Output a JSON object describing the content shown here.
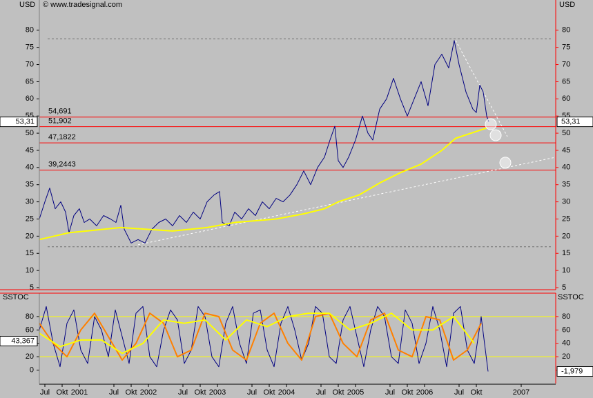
{
  "chart_data": [
    {
      "type": "line",
      "ylabel": "USD",
      "source": "© www.tradesignal.com",
      "xlim": [
        2000.42,
        2007.9
      ],
      "ylim": [
        4.4,
        88.8
      ],
      "yticks": [
        5,
        10,
        15,
        20,
        25,
        30,
        35,
        40,
        45,
        50,
        55,
        60,
        65,
        70,
        75,
        80
      ],
      "xticks": [
        {
          "value": 2000.5,
          "label": "Jul"
        },
        {
          "value": 2000.75,
          "label": "Okt"
        },
        {
          "value": 2001,
          "label": "2001"
        },
        {
          "value": 2001.5,
          "label": "Jul"
        },
        {
          "value": 2001.75,
          "label": "Okt"
        },
        {
          "value": 2002,
          "label": "2002"
        },
        {
          "value": 2002.5,
          "label": "Jul"
        },
        {
          "value": 2002.75,
          "label": "Okt"
        },
        {
          "value": 2003,
          "label": "2003"
        },
        {
          "value": 2003.5,
          "label": "Jul"
        },
        {
          "value": 2003.75,
          "label": "Okt"
        },
        {
          "value": 2004,
          "label": "2004"
        },
        {
          "value": 2004.5,
          "label": "Jul"
        },
        {
          "value": 2004.75,
          "label": "Okt"
        },
        {
          "value": 2005,
          "label": "2005"
        },
        {
          "value": 2005.5,
          "label": "Jul"
        },
        {
          "value": 2005.75,
          "label": "Okt"
        },
        {
          "value": 2006,
          "label": "2006"
        },
        {
          "value": 2006.5,
          "label": "Jul"
        },
        {
          "value": 2006.75,
          "label": "Okt"
        },
        {
          "value": 2007.4,
          "label": "2007"
        }
      ],
      "series": [
        {
          "color": "#000080",
          "x": [
            2000.42,
            2000.5,
            2000.57,
            2000.65,
            2000.73,
            2000.8,
            2000.85,
            2000.92,
            2001,
            2001.07,
            2001.15,
            2001.25,
            2001.35,
            2001.45,
            2001.53,
            2001.6,
            2001.65,
            2001.75,
            2001.85,
            2001.95,
            2002.05,
            2002.15,
            2002.25,
            2002.35,
            2002.45,
            2002.55,
            2002.65,
            2002.75,
            2002.85,
            2002.95,
            2003.03,
            2003.07,
            2003.17,
            2003.25,
            2003.35,
            2003.45,
            2003.55,
            2003.65,
            2003.75,
            2003.85,
            2003.95,
            2004.05,
            2004.15,
            2004.25,
            2004.35,
            2004.45,
            2004.55,
            2004.63,
            2004.7,
            2004.75,
            2004.82,
            2004.9,
            2005,
            2005.1,
            2005.18,
            2005.25,
            2005.35,
            2005.45,
            2005.55,
            2005.65,
            2005.75,
            2005.85,
            2005.95,
            2006.05,
            2006.15,
            2006.25,
            2006.35,
            2006.43,
            2006.5,
            2006.6,
            2006.7,
            2006.75,
            2006.8,
            2006.85,
            2006.9,
            2006.93
          ],
          "values": [
            25,
            30,
            34,
            28,
            30,
            27,
            21,
            26,
            28,
            24,
            25,
            23,
            26,
            25,
            24,
            29,
            22,
            18,
            19,
            18,
            22,
            24,
            25,
            23,
            26,
            24,
            27,
            25,
            30,
            32,
            33,
            24,
            23,
            27,
            25,
            28,
            26,
            30,
            28,
            31,
            30,
            32,
            35,
            39,
            35,
            40,
            43,
            48,
            52,
            42,
            40,
            43,
            48,
            55,
            50,
            48,
            57,
            60,
            66,
            60,
            55,
            60,
            65,
            58,
            70,
            73,
            69,
            77,
            70,
            62,
            57,
            56,
            64,
            62,
            55,
            53.31
          ]
        },
        {
          "color": "#ffff00",
          "x": [
            2000.42,
            2000.85,
            2001.35,
            2001.6,
            2002.35,
            2002.85,
            2003.25,
            2003.85,
            2004.25,
            2004.55,
            2004.75,
            2005.05,
            2005.35,
            2005.65,
            2005.95,
            2006.25,
            2006.45,
            2006.75,
            2006.9
          ],
          "values": [
            19,
            21,
            22,
            22.5,
            21.5,
            22.5,
            24,
            25,
            26.5,
            28,
            30,
            32,
            35.5,
            38.5,
            41,
            45,
            48.5,
            50.5,
            51.5
          ]
        }
      ],
      "levels": [
        {
          "value": 54.691,
          "label": "54,691"
        },
        {
          "value": 51.902,
          "label": "51,902"
        },
        {
          "value": 47.1822,
          "label": "47,1822"
        },
        {
          "value": 39.2443,
          "label": "39,2443"
        }
      ],
      "guides": [
        77.5,
        16.9
      ],
      "trendlines": [
        {
          "x": [
            2001.85,
            2007.9
          ],
          "y": [
            17.5,
            43
          ]
        },
        {
          "x": [
            2006.45,
            2007.2
          ],
          "y": [
            77,
            49
          ]
        }
      ],
      "circles": [
        {
          "x": 2006.96,
          "y": 52.6
        },
        {
          "x": 2007.03,
          "y": 49.4
        },
        {
          "x": 2007.17,
          "y": 41.4
        }
      ],
      "last": {
        "value": 53.31,
        "label": "53,31"
      }
    },
    {
      "type": "line",
      "ylabel": "SSTOC",
      "xlim": [
        2000.42,
        2007.9
      ],
      "ylim": [
        -20,
        115
      ],
      "yticks": [
        0,
        20,
        40,
        60,
        80
      ],
      "levels": [
        80,
        20
      ],
      "series": [
        {
          "color": "#000080",
          "x": [
            2000.42,
            2000.52,
            2000.62,
            2000.72,
            2000.82,
            2000.92,
            2001.02,
            2001.12,
            2001.22,
            2001.32,
            2001.42,
            2001.52,
            2001.62,
            2001.72,
            2001.82,
            2001.92,
            2002.02,
            2002.12,
            2002.22,
            2002.32,
            2002.42,
            2002.52,
            2002.62,
            2002.72,
            2002.82,
            2002.92,
            2003.02,
            2003.12,
            2003.22,
            2003.32,
            2003.42,
            2003.52,
            2003.62,
            2003.72,
            2003.82,
            2003.92,
            2004.02,
            2004.12,
            2004.22,
            2004.32,
            2004.42,
            2004.52,
            2004.62,
            2004.72,
            2004.82,
            2004.92,
            2005.02,
            2005.12,
            2005.22,
            2005.32,
            2005.42,
            2005.52,
            2005.62,
            2005.72,
            2005.82,
            2005.92,
            2006.02,
            2006.12,
            2006.22,
            2006.32,
            2006.42,
            2006.52,
            2006.62,
            2006.72,
            2006.82,
            2006.92
          ],
          "values": [
            60,
            95,
            40,
            5,
            70,
            90,
            30,
            10,
            80,
            60,
            20,
            90,
            50,
            10,
            85,
            95,
            20,
            5,
            60,
            90,
            75,
            10,
            30,
            95,
            80,
            20,
            5,
            70,
            95,
            40,
            10,
            85,
            90,
            30,
            5,
            70,
            95,
            60,
            15,
            40,
            95,
            85,
            20,
            10,
            75,
            95,
            50,
            5,
            60,
            95,
            80,
            20,
            10,
            90,
            70,
            10,
            40,
            95,
            60,
            5,
            85,
            95,
            30,
            10,
            80,
            -1.979
          ]
        },
        {
          "color": "#ff8000",
          "x": [
            2000.42,
            2000.62,
            2000.82,
            2001.02,
            2001.22,
            2001.42,
            2001.62,
            2001.82,
            2002.02,
            2002.22,
            2002.42,
            2002.62,
            2002.82,
            2003.02,
            2003.22,
            2003.42,
            2003.62,
            2003.82,
            2004.02,
            2004.22,
            2004.42,
            2004.62,
            2004.82,
            2005.02,
            2005.22,
            2005.42,
            2005.62,
            2005.82,
            2006.02,
            2006.22,
            2006.42,
            2006.62,
            2006.82
          ],
          "values": [
            70,
            40,
            20,
            60,
            85,
            50,
            15,
            40,
            85,
            70,
            20,
            30,
            85,
            80,
            30,
            15,
            70,
            85,
            40,
            15,
            80,
            85,
            40,
            20,
            75,
            85,
            30,
            20,
            80,
            75,
            15,
            30,
            70
          ]
        },
        {
          "color": "#ffff00",
          "x": [
            2000.42,
            2000.72,
            2001.02,
            2001.32,
            2001.62,
            2001.92,
            2002.22,
            2002.52,
            2002.82,
            2003.12,
            2003.42,
            2003.72,
            2004.02,
            2004.32,
            2004.62,
            2004.92,
            2005.22,
            2005.52,
            2005.82,
            2006.12,
            2006.42,
            2006.72
          ],
          "values": [
            55,
            35,
            45,
            45,
            25,
            40,
            75,
            70,
            75,
            45,
            75,
            65,
            80,
            85,
            85,
            60,
            70,
            85,
            60,
            60,
            80,
            40
          ]
        }
      ],
      "first": {
        "value": 43.367,
        "label": "43,367"
      },
      "last": {
        "value": -1.979,
        "label": "-1,979"
      }
    }
  ]
}
